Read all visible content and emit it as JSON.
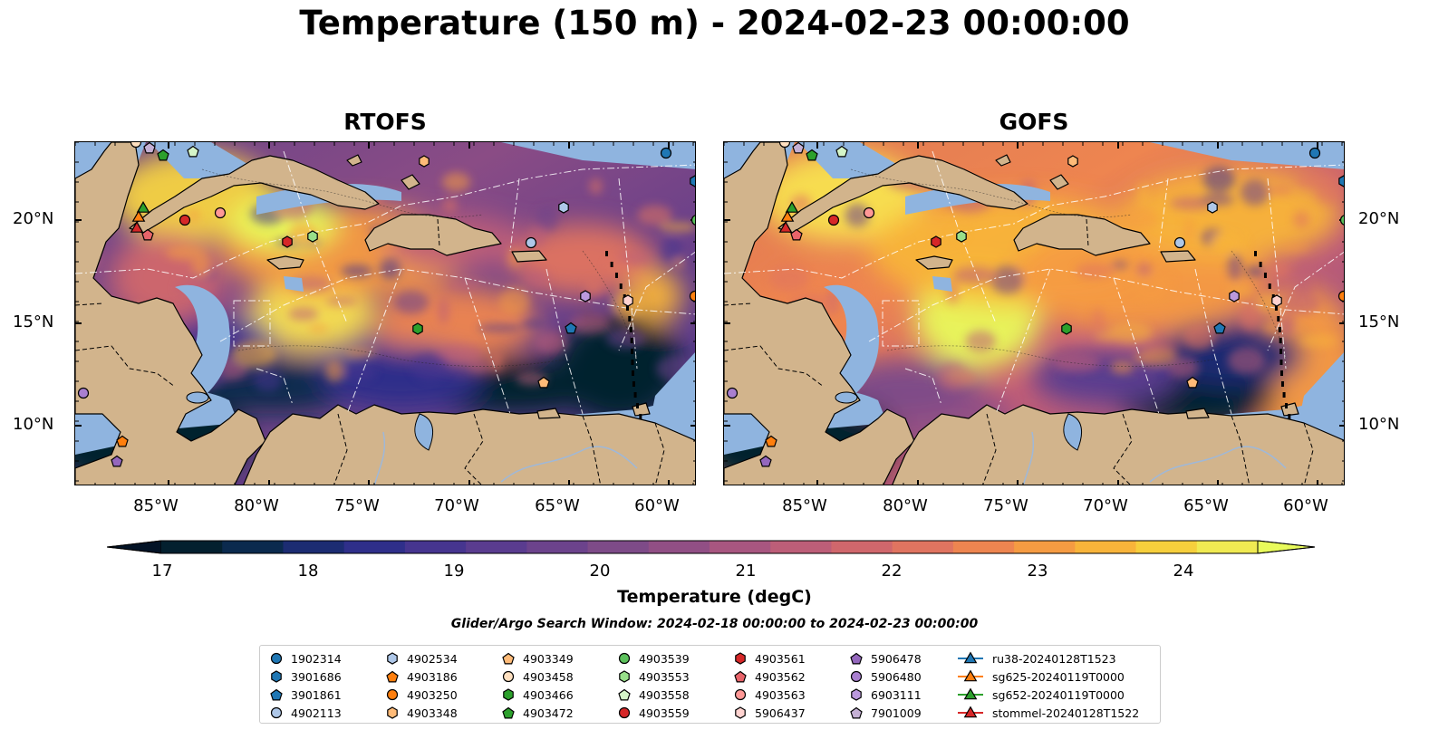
{
  "title": "Temperature (150 m) - 2024-02-23 00:00:00",
  "panels": [
    {
      "title": "RTOFS"
    },
    {
      "title": "GOFS"
    }
  ],
  "axes": {
    "lat_labels": [
      "20°N",
      "15°N",
      "10°N"
    ],
    "lon_labels": [
      "85°W",
      "80°W",
      "75°W",
      "70°W",
      "65°W",
      "60°W"
    ]
  },
  "colorbar": {
    "label": "Temperature (degC)",
    "ticks": [
      "17",
      "18",
      "19",
      "20",
      "21",
      "22",
      "23",
      "24"
    ],
    "range": [
      16.5,
      24.5
    ],
    "colors": [
      "#04202f",
      "#0b2a4e",
      "#1c2c72",
      "#2f2f8a",
      "#46358f",
      "#5a3c8f",
      "#6c438c",
      "#7e4b88",
      "#914f85",
      "#a85680",
      "#bd5e78",
      "#d0676c",
      "#e07460",
      "#ee8550",
      "#f59b42",
      "#f8b43a",
      "#f6cf3c",
      "#f0ea52"
    ],
    "over_color": "#e8fa5b",
    "under_color": "#031326"
  },
  "search_window": "Glider/Argo Search Window: 2024-02-18 00:00:00 to 2024-02-23 00:00:00",
  "legend": [
    [
      {
        "label": "1902314",
        "marker": "circle",
        "color": "#1f77b4"
      },
      {
        "label": "3901686",
        "marker": "hexagon",
        "color": "#1f77b4"
      },
      {
        "label": "3901861",
        "marker": "pentagon",
        "color": "#1f77b4"
      },
      {
        "label": "4902113",
        "marker": "circle",
        "color": "#aec7e8"
      }
    ],
    [
      {
        "label": "4902534",
        "marker": "hexagon",
        "color": "#aec7e8"
      },
      {
        "label": "4903186",
        "marker": "pentagon",
        "color": "#ff7f0e"
      },
      {
        "label": "4903250",
        "marker": "circle",
        "color": "#ff7f0e"
      },
      {
        "label": "4903348",
        "marker": "hexagon",
        "color": "#ffbb78"
      }
    ],
    [
      {
        "label": "4903349",
        "marker": "pentagon",
        "color": "#ffbb78"
      },
      {
        "label": "4903458",
        "marker": "circle",
        "color": "#ffe0c0"
      },
      {
        "label": "4903466",
        "marker": "hexagon",
        "color": "#2ca02c"
      },
      {
        "label": "4903472",
        "marker": "pentagon",
        "color": "#2ca02c"
      }
    ],
    [
      {
        "label": "4903539",
        "marker": "circle",
        "color": "#5cc15c"
      },
      {
        "label": "4903553",
        "marker": "hexagon",
        "color": "#98df8a"
      },
      {
        "label": "4903558",
        "marker": "pentagon",
        "color": "#d5f5c8"
      },
      {
        "label": "4903559",
        "marker": "circle",
        "color": "#d62728"
      }
    ],
    [
      {
        "label": "4903561",
        "marker": "hexagon",
        "color": "#d62728"
      },
      {
        "label": "4903562",
        "marker": "pentagon",
        "color": "#e8646a"
      },
      {
        "label": "4903563",
        "marker": "circle",
        "color": "#ff9896"
      },
      {
        "label": "5906437",
        "marker": "hexagon",
        "color": "#ffd3d0"
      }
    ],
    [
      {
        "label": "5906478",
        "marker": "pentagon",
        "color": "#9467bd"
      },
      {
        "label": "5906480",
        "marker": "circle",
        "color": "#a97fd0"
      },
      {
        "label": "6903111",
        "marker": "hexagon",
        "color": "#bb99dd"
      },
      {
        "label": "7901009",
        "marker": "pentagon",
        "color": "#c5b0d5"
      }
    ],
    [
      {
        "label": "ru38-20240128T1523",
        "marker": "triangle-line",
        "color": "#1f77b4"
      },
      {
        "label": "sg625-20240119T0000",
        "marker": "triangle-line",
        "color": "#ff7f0e"
      },
      {
        "label": "sg652-20240119T0000",
        "marker": "triangle-line",
        "color": "#2ca02c"
      },
      {
        "label": "stommel-20240128T1522",
        "marker": "triangle-line",
        "color": "#d62728"
      }
    ]
  ]
}
